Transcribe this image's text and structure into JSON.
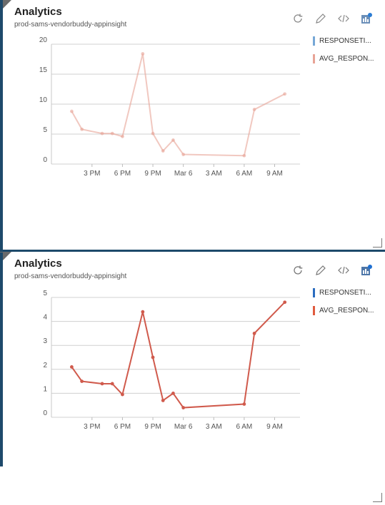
{
  "tiles": [
    {
      "title": "Analytics",
      "subtitle": "prod-sams-vendorbuddy-appinsight",
      "legend": [
        {
          "label": "RESPONSETI...",
          "color": "#76a7d6"
        },
        {
          "label": "AVG_RESPON...",
          "color": "#e8a396"
        }
      ],
      "toolbar": [
        "refresh-icon",
        "edit-icon",
        "code-icon",
        "chart-gallery-icon"
      ],
      "chart_data": {
        "type": "line",
        "x_tick_labels": [
          "3 PM",
          "6 PM",
          "9 PM",
          "Mar 6",
          "3 AM",
          "6 AM",
          "9 AM"
        ],
        "y_tick_labels": [
          "0",
          "5",
          "10",
          "15",
          "20"
        ],
        "ylim": [
          0,
          20
        ],
        "grid": true,
        "legend_position": "right",
        "series": [
          {
            "name": "AVG_RESPON...",
            "color": "#e8a396",
            "x_hours": [
              0,
              1,
              3,
              4,
              5,
              7,
              8,
              9,
              10,
              11,
              17,
              18,
              21
            ],
            "values": [
              8.8,
              5.8,
              5.1,
              5.1,
              4.6,
              18.4,
              5.1,
              2.2,
              4.0,
              1.6,
              1.4,
              9.1,
              11.7
            ]
          }
        ]
      }
    },
    {
      "title": "Analytics",
      "subtitle": "prod-sams-vendorbuddy-appinsight",
      "legend": [
        {
          "label": "RESPONSETI...",
          "color": "#2b6cbf"
        },
        {
          "label": "AVG_RESPON...",
          "color": "#e05a3e"
        }
      ],
      "toolbar": [
        "refresh-icon",
        "edit-icon",
        "code-icon",
        "chart-gallery-icon"
      ],
      "chart_data": {
        "type": "line",
        "x_tick_labels": [
          "3 PM",
          "6 PM",
          "9 PM",
          "Mar 6",
          "3 AM",
          "6 AM",
          "9 AM"
        ],
        "y_tick_labels": [
          "0",
          "1",
          "2",
          "3",
          "4",
          "5"
        ],
        "ylim": [
          0,
          5
        ],
        "grid": true,
        "legend_position": "right",
        "series": [
          {
            "name": "AVG_RESPON...",
            "color": "#d05a4c",
            "x_hours": [
              0,
              1,
              3,
              4,
              5,
              7,
              8,
              9,
              10,
              11,
              17,
              18,
              21
            ],
            "values": [
              2.1,
              1.5,
              1.4,
              1.4,
              0.95,
              4.4,
              2.5,
              0.7,
              1.0,
              0.4,
              0.55,
              3.5,
              4.8
            ]
          }
        ]
      }
    }
  ]
}
